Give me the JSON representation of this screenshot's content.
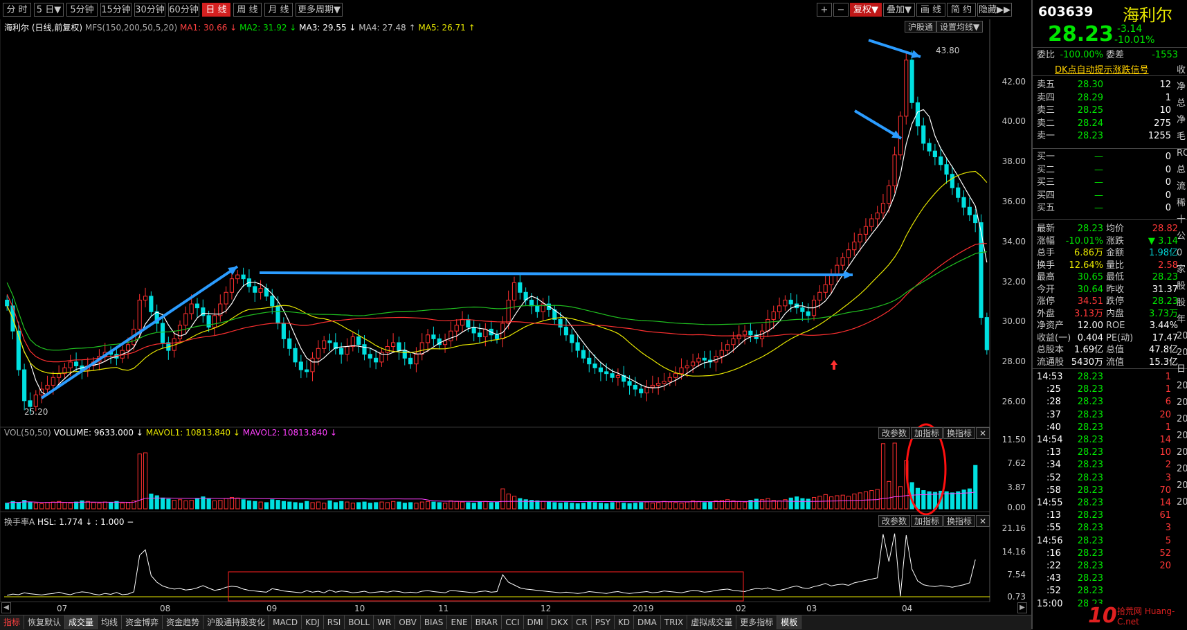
{
  "toolbar": {
    "periods": [
      "分 时",
      "5 日▼",
      "5分钟",
      "15分钟",
      "30分钟",
      "60分钟",
      "日 线",
      "周 线",
      "月 线",
      "更多周期▼"
    ],
    "right_buttons": [
      "+",
      "−",
      "复权▼",
      "叠加▼",
      "画 线",
      "简 约",
      "隐藏▶▶"
    ],
    "sub_buttons": [
      "沪股通",
      "设置均线▼"
    ]
  },
  "legend": {
    "stock": "海利尔",
    "mode": "(日线,前复权)",
    "mfs": "MFS(150,200,50,5,20)",
    "ma1": "MA1: 30.66 ↓",
    "ma2": "MA2: 31.92 ↓",
    "ma3": "MA3: 29.55 ↓",
    "ma4": "MA4: 27.48 ↑",
    "ma5": "MA5: 26.71 ↑"
  },
  "price_axis": [
    "42.00",
    "40.00",
    "38.00",
    "36.00",
    "34.00",
    "32.00",
    "30.00",
    "28.00",
    "26.00"
  ],
  "annotations": {
    "high": "43.80",
    "low": "25.20"
  },
  "volume_panel": {
    "title": "VOL(50,50)",
    "volume": "VOLUME: 9633.000 ↓",
    "mavol1": "MAVOL1: 10813.840 ↓",
    "mavol2": "MAVOL2: 10813.840 ↓",
    "buttons": [
      "改参数",
      "加指标",
      "换指标",
      "✕"
    ],
    "axis": [
      "11.50",
      "7.62",
      "3.87",
      "0.00"
    ]
  },
  "hsl_panel": {
    "title": "换手率A",
    "hsl": "HSL: 1.774 ↓ : 1.000 −",
    "buttons": [
      "改参数",
      "加指标",
      "换指标",
      "✕"
    ],
    "axis": [
      "21.16",
      "14.16",
      "7.54",
      "0.73"
    ]
  },
  "date_axis": [
    "07",
    "08",
    "09",
    "10",
    "11",
    "12",
    "2019",
    "02",
    "03",
    "04"
  ],
  "bottom_tabs": [
    "指标",
    "恢复默认",
    "成交量",
    "均线",
    "资金博弈",
    "资金趋势",
    "沪股通持股变化",
    "MACD",
    "KDJ",
    "RSI",
    "BOLL",
    "WR",
    "OBV",
    "BIAS",
    "ENE",
    "BRAR",
    "CCI",
    "DMI",
    "DKX",
    "CR",
    "PSY",
    "KD",
    "DMA",
    "TRIX",
    "虚拟成交量",
    "更多指标",
    "模板"
  ],
  "quote": {
    "code": "603639",
    "name": "海利尔",
    "price": "28.23",
    "change": "-3.14",
    "pct": "-10.01%",
    "weibi_label": "委比",
    "weibi": "-100.00%",
    "weicha_label": "委差",
    "weicha": "-1553",
    "signal": "DK点自动提示涨跌信号",
    "asks": [
      {
        "label": "卖五",
        "price": "28.30",
        "vol": "12"
      },
      {
        "label": "卖四",
        "price": "28.29",
        "vol": "1"
      },
      {
        "label": "卖三",
        "price": "28.25",
        "vol": "10"
      },
      {
        "label": "卖二",
        "price": "28.24",
        "vol": "275"
      },
      {
        "label": "卖一",
        "price": "28.23",
        "vol": "1255"
      }
    ],
    "bids": [
      {
        "label": "买一",
        "price": "—",
        "vol": "0"
      },
      {
        "label": "买二",
        "price": "—",
        "vol": "0"
      },
      {
        "label": "买三",
        "price": "—",
        "vol": "0"
      },
      {
        "label": "买四",
        "price": "—",
        "vol": "0"
      },
      {
        "label": "买五",
        "price": "—",
        "vol": "0"
      }
    ],
    "stats": [
      {
        "l1": "最新",
        "v1": "28.23",
        "c1": "green",
        "l2": "均价",
        "v2": "28.82",
        "c2": "red"
      },
      {
        "l1": "涨幅",
        "v1": "-10.01%",
        "c1": "green",
        "l2": "涨跌",
        "v2": "▼ 3.14",
        "c2": "green"
      },
      {
        "l1": "总手",
        "v1": "6.86万",
        "c1": "yellow",
        "l2": "金额",
        "v2": "1.98亿",
        "c2": "cyan"
      },
      {
        "l1": "换手",
        "v1": "12.64%",
        "c1": "yellow",
        "l2": "量比",
        "v2": "2.58",
        "c2": "red"
      },
      {
        "l1": "最高",
        "v1": "30.65",
        "c1": "green",
        "l2": "最低",
        "v2": "28.23",
        "c2": "green"
      },
      {
        "l1": "今开",
        "v1": "30.64",
        "c1": "green",
        "l2": "昨收",
        "v2": "31.37",
        "c2": "white"
      },
      {
        "l1": "涨停",
        "v1": "34.51",
        "c1": "red",
        "l2": "跌停",
        "v2": "28.23",
        "c2": "green"
      },
      {
        "l1": "外盘",
        "v1": "3.13万",
        "c1": "red",
        "l2": "内盘",
        "v2": "3.73万",
        "c2": "green"
      },
      {
        "l1": "净资产",
        "v1": "12.00",
        "c1": "white",
        "l2": "ROE",
        "v2": "3.44%",
        "c2": "white"
      },
      {
        "l1": "收益(一)",
        "v1": "0.404",
        "c1": "white",
        "l2": "PE(动)",
        "v2": "17.47",
        "c2": "white"
      },
      {
        "l1": "总股本",
        "v1": "1.69亿",
        "c1": "white",
        "l2": "总值",
        "v2": "47.8亿",
        "c2": "white"
      },
      {
        "l1": "流通股",
        "v1": "5430万",
        "c1": "white",
        "l2": "流值",
        "v2": "15.3亿",
        "c2": "white"
      }
    ],
    "ticks": [
      {
        "t": "14:53",
        "p": "28.23",
        "v": "1"
      },
      {
        "t": ":25",
        "p": "28.23",
        "v": "1"
      },
      {
        "t": ":28",
        "p": "28.23",
        "v": "6"
      },
      {
        "t": ":37",
        "p": "28.23",
        "v": "20"
      },
      {
        "t": ":40",
        "p": "28.23",
        "v": "1"
      },
      {
        "t": "14:54",
        "p": "28.23",
        "v": "14"
      },
      {
        "t": ":13",
        "p": "28.23",
        "v": "10"
      },
      {
        "t": ":34",
        "p": "28.23",
        "v": "2"
      },
      {
        "t": ":52",
        "p": "28.23",
        "v": "3"
      },
      {
        "t": ":58",
        "p": "28.23",
        "v": "70"
      },
      {
        "t": "14:55",
        "p": "28.23",
        "v": "14"
      },
      {
        "t": ":13",
        "p": "28.23",
        "v": "61"
      },
      {
        "t": ":55",
        "p": "28.23",
        "v": "3"
      },
      {
        "t": "14:56",
        "p": "28.23",
        "v": "5"
      },
      {
        "t": ":16",
        "p": "28.23",
        "v": "52"
      },
      {
        "t": ":22",
        "p": "28.23",
        "v": "20"
      },
      {
        "t": ":43",
        "p": "28.23",
        "v": ""
      },
      {
        "t": ":52",
        "p": "28.23",
        "v": ""
      },
      {
        "t": "15:00",
        "p": "28.23",
        "v": ""
      }
    ],
    "edge_chars": [
      "收",
      "净",
      "总",
      "净",
      "毛",
      "RO",
      "总",
      "流",
      "稀",
      "",
      "十",
      "公",
      "0家",
      "股",
      "股",
      "年",
      "20",
      "20",
      "日",
      "20",
      "20",
      "20",
      "20",
      "20",
      "20",
      "20",
      "20"
    ]
  },
  "watermark": "拾荒网 Huang-C.net",
  "colors": {
    "up": "#ff3030",
    "down": "#00e0e0",
    "ma1": "#ffffff",
    "ma2": "#e6e600",
    "ma3": "#ff40ff",
    "arrow": "#2b9cff"
  },
  "chart_data": {
    "type": "candlestick",
    "description_series": [
      "price",
      "volume",
      "turnover"
    ],
    "x_months": [
      "07",
      "08",
      "09",
      "10",
      "11",
      "12",
      "2019",
      "02",
      "03",
      "04"
    ],
    "price_ylim": [
      25.2,
      43.8
    ],
    "price_path": [
      30.5,
      29.2,
      27.2,
      25.6,
      25.3,
      25.9,
      26.2,
      26.4,
      26.8,
      27.0,
      27.3,
      27.6,
      27.4,
      27.2,
      27.4,
      27.6,
      27.9,
      28.1,
      28.0,
      27.8,
      28.2,
      28.5,
      29.3,
      30.8,
      31.0,
      30.2,
      29.6,
      28.6,
      28.2,
      28.8,
      29.5,
      30.1,
      30.6,
      30.4,
      30.0,
      29.4,
      30.0,
      30.6,
      31.2,
      31.9,
      32.1,
      31.9,
      31.5,
      31.2,
      31.4,
      31.0,
      30.5,
      29.6,
      28.8,
      28.3,
      27.6,
      27.2,
      27.1,
      27.8,
      28.3,
      28.7,
      28.6,
      28.3,
      28.0,
      28.4,
      28.9,
      28.5,
      28.0,
      27.8,
      27.6,
      28.1,
      28.4,
      28.6,
      28.2,
      27.8,
      27.5,
      28.0,
      28.6,
      29.0,
      28.8,
      28.5,
      28.7,
      29.2,
      29.5,
      29.8,
      29.4,
      29.1,
      28.9,
      29.3,
      29.0,
      28.8,
      29.6,
      30.8,
      31.7,
      31.2,
      30.8,
      30.5,
      30.2,
      30.6,
      30.3,
      29.8,
      29.4,
      29.0,
      28.6,
      28.2,
      27.8,
      27.5,
      27.3,
      27.1,
      27.0,
      26.8,
      26.9,
      26.6,
      26.4,
      26.2,
      26.0,
      26.3,
      26.4,
      26.5,
      26.6,
      26.8,
      27.0,
      27.3,
      27.4,
      27.6,
      27.8,
      27.7,
      27.6,
      27.9,
      28.2,
      28.5,
      28.8,
      29.0,
      29.2,
      29.0,
      28.8,
      29.2,
      29.8,
      30.2,
      30.5,
      30.8,
      30.6,
      30.4,
      30.2,
      30.0,
      30.8,
      31.2,
      31.6,
      32.1,
      32.6,
      33.0,
      33.4,
      33.8,
      34.2,
      34.6,
      35.0,
      35.3,
      35.8,
      36.7,
      38.3,
      40.3,
      43.2,
      41.0,
      39.8,
      38.9,
      38.5,
      38.2,
      37.8,
      37.3,
      36.6,
      36.1,
      35.6,
      35.2,
      34.8,
      29.9,
      28.23
    ],
    "volume_ylim": [
      0,
      11.5
    ],
    "volume_path": [
      1.0,
      1.3,
      1.1,
      1.5,
      1.2,
      1.0,
      0.9,
      1.1,
      1.2,
      1.3,
      1.1,
      1.0,
      1.2,
      1.4,
      1.3,
      1.1,
      1.0,
      1.2,
      1.1,
      1.3,
      1.0,
      1.1,
      1.4,
      9.6,
      9.8,
      2.6,
      2.3,
      1.9,
      1.7,
      1.5,
      1.6,
      1.4,
      1.5,
      1.8,
      2.1,
      1.7,
      1.4,
      1.5,
      1.8,
      2.0,
      1.9,
      1.6,
      1.4,
      1.3,
      1.2,
      1.1,
      1.6,
      1.5,
      1.3,
      1.2,
      1.1,
      1.0,
      1.3,
      1.1,
      1.2,
      1.0,
      1.4,
      1.1,
      1.3,
      1.2,
      1.0,
      1.1,
      1.2,
      1.0,
      1.1,
      1.2,
      1.1,
      1.3,
      1.2,
      1.0,
      1.1,
      1.0,
      1.2,
      1.3,
      1.2,
      1.1,
      1.0,
      1.4,
      1.3,
      1.2,
      1.1,
      1.0,
      1.2,
      1.3,
      1.1,
      1.2,
      3.5,
      2.6,
      2.2,
      1.8,
      1.6,
      1.5,
      1.4,
      1.3,
      1.2,
      1.1,
      1.0,
      1.1,
      1.0,
      0.9,
      1.0,
      1.2,
      1.1,
      1.0,
      0.9,
      1.1,
      1.2,
      1.0,
      0.9,
      1.0,
      1.1,
      1.2,
      1.0,
      1.1,
      1.3,
      1.2,
      1.1,
      1.0,
      1.2,
      1.4,
      1.3,
      1.1,
      1.2,
      1.4,
      1.5,
      1.6,
      1.4,
      1.3,
      1.2,
      1.5,
      1.7,
      1.6,
      1.8,
      1.5,
      1.4,
      1.6,
      1.9,
      2.1,
      1.8,
      1.7,
      2.0,
      2.2,
      2.5,
      2.1,
      2.3,
      2.4,
      2.2,
      2.6,
      2.8,
      3.0,
      3.2,
      3.4,
      11.4,
      4.8,
      11.5,
      3.9,
      8.4,
      4.6,
      3.6,
      3.2,
      3.0,
      2.9,
      3.1,
      3.0,
      2.8,
      3.0,
      3.3,
      3.5,
      7.6
    ],
    "turnover_ylim": [
      0.73,
      21.16
    ],
    "turnover_path": [
      1.2,
      1.6,
      1.4,
      2.0,
      1.7,
      1.5,
      1.3,
      1.6,
      1.8,
      2.2,
      1.7,
      1.4,
      2.0,
      2.3,
      2.1,
      1.6,
      1.3,
      1.8,
      1.5,
      2.1,
      1.4,
      1.6,
      2.3,
      14.0,
      15.8,
      7.5,
      5.4,
      4.2,
      3.6,
      3.2,
      3.4,
      2.9,
      3.1,
      3.6,
      4.3,
      3.5,
      2.8,
      3.1,
      3.8,
      4.1,
      3.9,
      3.2,
      2.8,
      2.6,
      2.4,
      2.2,
      3.3,
      3.0,
      2.6,
      2.4,
      2.2,
      2.0,
      2.7,
      2.2,
      2.5,
      2.0,
      2.9,
      2.2,
      2.6,
      2.4,
      2.0,
      2.2,
      2.5,
      2.0,
      2.2,
      2.4,
      2.2,
      2.6,
      2.4,
      2.0,
      2.2,
      2.0,
      2.5,
      2.7,
      2.4,
      2.2,
      2.0,
      2.8,
      2.6,
      2.4,
      2.2,
      2.0,
      2.4,
      2.6,
      2.2,
      2.4,
      7.8,
      5.4,
      4.5,
      3.6,
      3.2,
      3.0,
      2.8,
      2.6,
      2.4,
      2.2,
      2.0,
      2.2,
      2.0,
      1.8,
      2.0,
      2.4,
      2.2,
      2.0,
      1.8,
      2.2,
      2.4,
      2.0,
      1.8,
      2.0,
      2.2,
      2.4,
      2.0,
      2.2,
      2.6,
      2.4,
      2.2,
      2.0,
      2.4,
      2.8,
      2.6,
      2.2,
      2.4,
      2.8,
      3.0,
      3.2,
      2.8,
      2.6,
      2.4,
      3.0,
      3.4,
      3.2,
      3.6,
      3.0,
      2.8,
      3.2,
      3.8,
      4.2,
      3.6,
      3.4,
      4.0,
      4.4,
      5.0,
      4.2,
      4.6,
      4.8,
      4.4,
      5.2,
      5.6,
      6.0,
      6.4,
      6.8,
      20.8,
      12.0,
      21.0,
      0.9,
      20.5,
      9.6,
      5.8,
      4.6,
      4.2,
      4.0,
      4.3,
      4.1,
      3.8,
      4.2,
      4.6,
      5.2,
      12.64
    ]
  }
}
